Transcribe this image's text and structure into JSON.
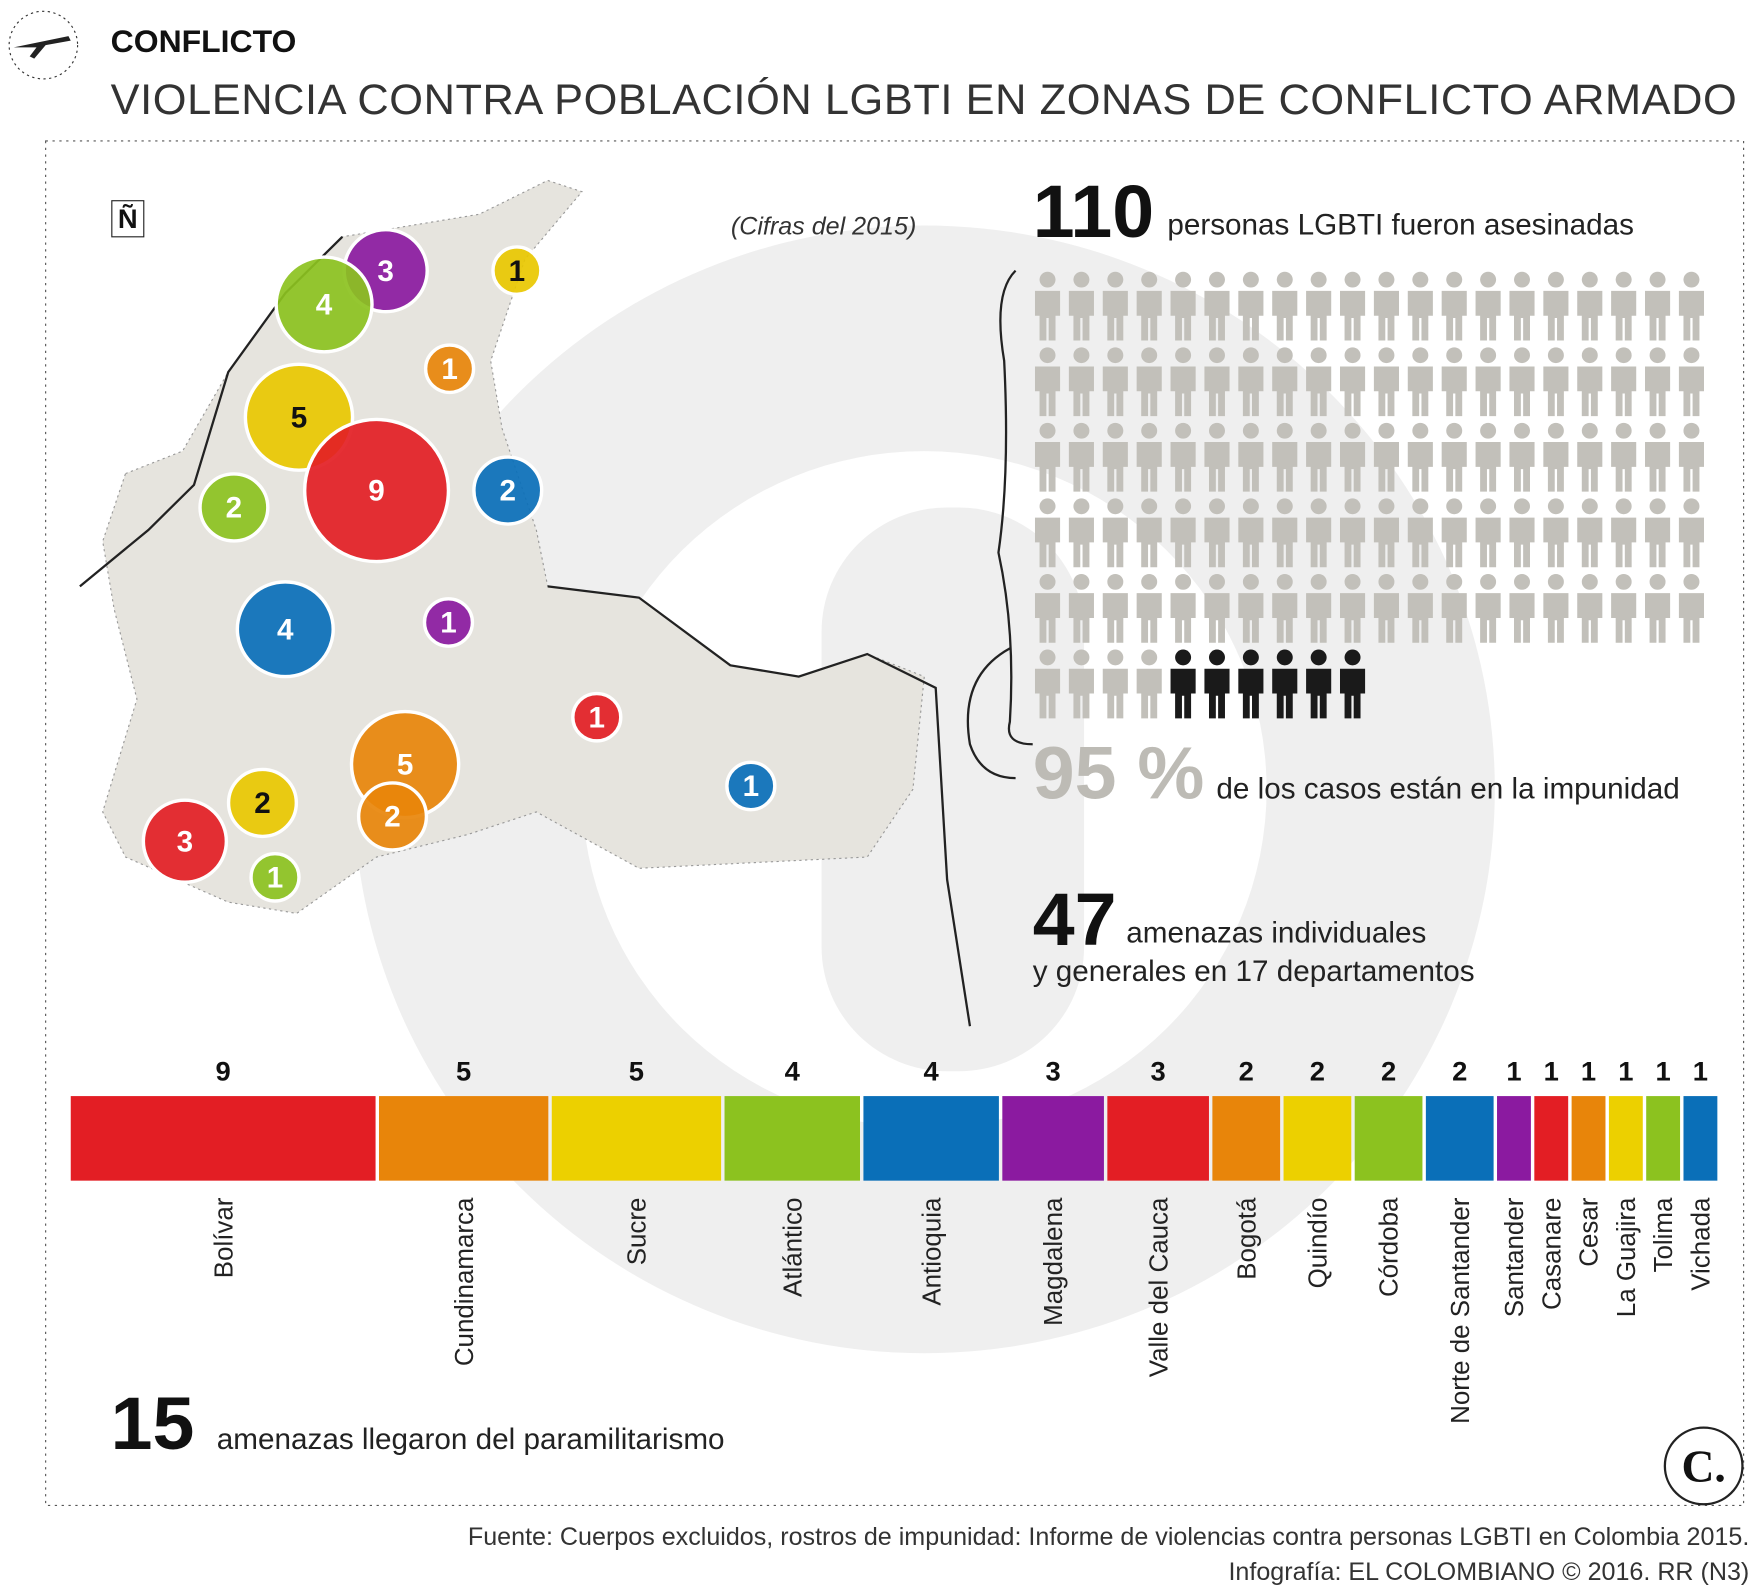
{
  "header": {
    "section": "CONFLICTO",
    "title": "VIOLENCIA CONTRA POBLACIÓN LGBTI EN ZONAS DE CONFLICTO ARMADO"
  },
  "map": {
    "note": "(Cifras del 2015)",
    "north": "Ñ",
    "bubbles": [
      {
        "value": 3,
        "color": "#8b1aa0"
      },
      {
        "value": 1,
        "color": "#e9c800"
      },
      {
        "value": 4,
        "color": "#8cc21f"
      },
      {
        "value": 1,
        "color": "#e8850a"
      },
      {
        "value": 5,
        "color": "#e9c800"
      },
      {
        "value": 9,
        "color": "#e31e24"
      },
      {
        "value": 2,
        "color": "#8cc21f"
      },
      {
        "value": 2,
        "color": "#0a6fb8"
      },
      {
        "value": 4,
        "color": "#0a6fb8"
      },
      {
        "value": 1,
        "color": "#8b1aa0"
      },
      {
        "value": 1,
        "color": "#e31e24"
      },
      {
        "value": 5,
        "color": "#e8850a"
      },
      {
        "value": 1,
        "color": "#0a6fb8"
      },
      {
        "value": 2,
        "color": "#e9c800"
      },
      {
        "value": 3,
        "color": "#e31e24"
      },
      {
        "value": 2,
        "color": "#e8850a"
      },
      {
        "value": 1,
        "color": "#8cc21f"
      }
    ]
  },
  "stats": {
    "killed": {
      "number": 110,
      "text": "personas LGBTI fueron asesinadas"
    },
    "impunity": {
      "number": {
        "value": 95,
        "label": "95 %"
      },
      "text": "de los casos están en la impunidad"
    },
    "threats": {
      "number": 47,
      "line1": "amenazas individuales",
      "line2": "y generales en 17 departamentos"
    },
    "paramilitary": {
      "number": 15,
      "text": "amenazas llegaron del paramilitarismo"
    }
  },
  "chart_data": {
    "type": "stacked-bar",
    "categories": [
      "Bolívar",
      "Cundinamarca",
      "Sucre",
      "Atlántico",
      "Antioquia",
      "Magdalena",
      "Valle del Cauca",
      "Bogotá",
      "Quindío",
      "Córdoba",
      "Norte de Santander",
      "Santander",
      "Casanare",
      "Cesar",
      "La Guajira",
      "Tolima",
      "Vichada"
    ],
    "values": [
      9,
      5,
      5,
      4,
      4,
      3,
      3,
      2,
      2,
      2,
      2,
      1,
      1,
      1,
      1,
      1,
      1
    ],
    "colors": [
      "#e31e24",
      "#e8850a",
      "#ecd000",
      "#8cc21f",
      "#0a6fb8",
      "#8b1aa0",
      "#e31e24",
      "#e8850a",
      "#ecd000",
      "#8cc21f",
      "#0a6fb8",
      "#8b1aa0",
      "#e31e24",
      "#e8850a",
      "#ecd000",
      "#8cc21f",
      "#0a6fb8"
    ]
  },
  "footer": {
    "source": "Fuente: Cuerpos excluidos, rostros de impunidad: Informe de violencias contra personas LGBTI en Colombia 2015.",
    "credit": "Infografía: EL COLOMBIANO © 2016. RR (N3)",
    "logo": "C."
  }
}
